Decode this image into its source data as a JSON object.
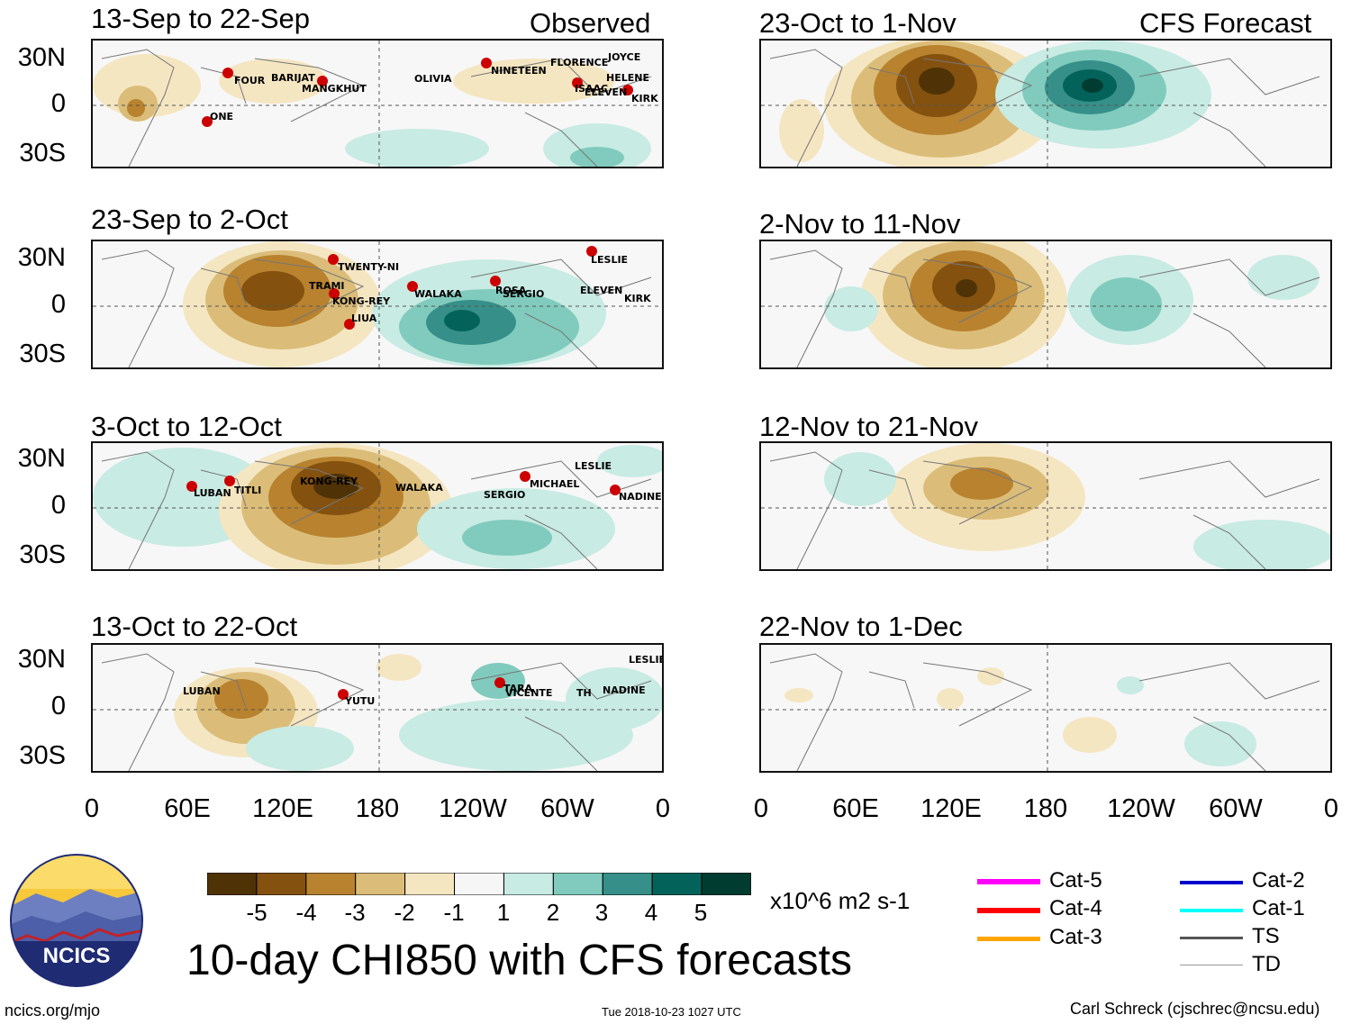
{
  "left_panels": [
    {
      "title": "13-Sep to 22-Sep",
      "corner": "Observed",
      "storms": [
        "FOUR",
        "BARIJAT",
        "MANGKHUT",
        "OLIVIA",
        "NINETEEN",
        "FLORENCE",
        "JOYCE",
        "HELENE",
        "ISAAC",
        "ELEVEN",
        "KIRK",
        "ONE"
      ]
    },
    {
      "title": "23-Sep to 2-Oct",
      "corner": "",
      "storms": [
        "TWENTY-NI",
        "TRAMI",
        "KONG-REY",
        "LIUA",
        "WALAKA",
        "ROSA",
        "SERGIO",
        "LESLIE",
        "ELEVEN",
        "KIRK"
      ]
    },
    {
      "title": "3-Oct to 12-Oct",
      "corner": "",
      "storms": [
        "LUBAN",
        "TITLI",
        "KONG-REY",
        "WALAKA",
        "SERGIO",
        "MICHAEL",
        "LESLIE",
        "NADINE"
      ]
    },
    {
      "title": "13-Oct to 22-Oct",
      "corner": "",
      "storms": [
        "LUBAN",
        "YUTU",
        "TARA",
        "VICENTE",
        "TH",
        "NADINE",
        "LESLIE"
      ]
    }
  ],
  "right_panels": [
    {
      "title": "23-Oct to 1-Nov",
      "corner": "CFS Forecast"
    },
    {
      "title": "2-Nov to 11-Nov",
      "corner": ""
    },
    {
      "title": "12-Nov to 21-Nov",
      "corner": ""
    },
    {
      "title": "22-Nov to 1-Dec",
      "corner": ""
    }
  ],
  "y_ticks": [
    "30N",
    "0",
    "30S"
  ],
  "x_ticks": [
    "0",
    "60E",
    "120E",
    "180",
    "120W",
    "60W",
    "0"
  ],
  "colorbar": {
    "labels": [
      "-5",
      "-4",
      "-3",
      "-2",
      "-1",
      "1",
      "2",
      "3",
      "4",
      "5"
    ],
    "colors": [
      "#4f3206",
      "#84510f",
      "#b8822f",
      "#dbbd79",
      "#f5e6c2",
      "#f6f6f6",
      "#c8ebe3",
      "#80cbbd",
      "#369089",
      "#03635a",
      "#013c30"
    ],
    "units": "x10^6 m2 s-1"
  },
  "legend": [
    {
      "label": "Cat-5",
      "color": "#ff00ff"
    },
    {
      "label": "Cat-4",
      "color": "#ff0000"
    },
    {
      "label": "Cat-3",
      "color": "#ffa500"
    },
    {
      "label": "Cat-2",
      "color": "#0000cc"
    },
    {
      "label": "Cat-1",
      "color": "#00ffff"
    },
    {
      "label": "TS",
      "color": "#555555"
    },
    {
      "label": "TD",
      "color": "#999999"
    }
  ],
  "logo_text": "NCICS",
  "main_title": "10-day CHI850 with CFS forecasts",
  "footer": {
    "left": "ncics.org/mjo",
    "center": "Tue 2018-10-23 1027 UTC",
    "right": "Carl Schreck (cjschrec@ncsu.edu)"
  }
}
